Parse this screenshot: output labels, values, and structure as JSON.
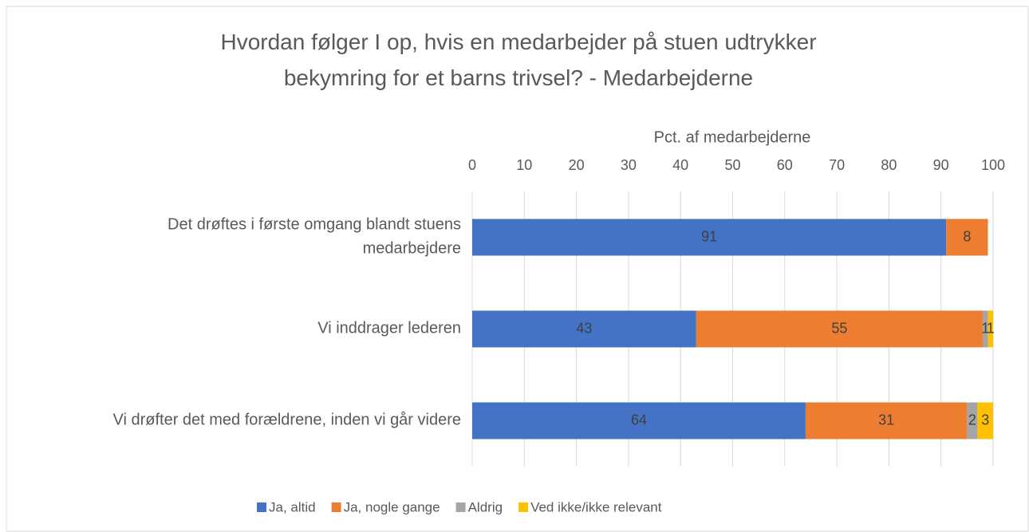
{
  "chart_data": {
    "type": "stacked_barh",
    "title": "Hvordan følger I op, hvis en medarbejder på stuen udtrykker bekymring for et barns trivsel? - Medarbejderne",
    "xlabel": "Pct. af medarbejderne",
    "categories": [
      "Det drøftes i første omgang blandt stuens\nmedarbejdere",
      "Vi inddrager lederen",
      "Vi drøfter det med forældrene, inden vi går videre"
    ],
    "series": [
      {
        "name": "Ja, altid",
        "color": "#4472c4",
        "values": [
          91,
          43,
          64
        ]
      },
      {
        "name": "Ja, nogle gange",
        "color": "#ed7d31",
        "values": [
          8,
          55,
          31
        ]
      },
      {
        "name": "Aldrig",
        "color": "#a5a5a5",
        "values": [
          null,
          1,
          2
        ]
      },
      {
        "name": "Ved ikke/ikke relevant",
        "color": "#ffc000",
        "values": [
          null,
          1,
          3
        ]
      }
    ],
    "xlim": [
      0,
      100
    ],
    "xticks": [
      0,
      10,
      20,
      30,
      40,
      50,
      60,
      70,
      80,
      90,
      100
    ],
    "grid": true,
    "legend": "bottom"
  }
}
